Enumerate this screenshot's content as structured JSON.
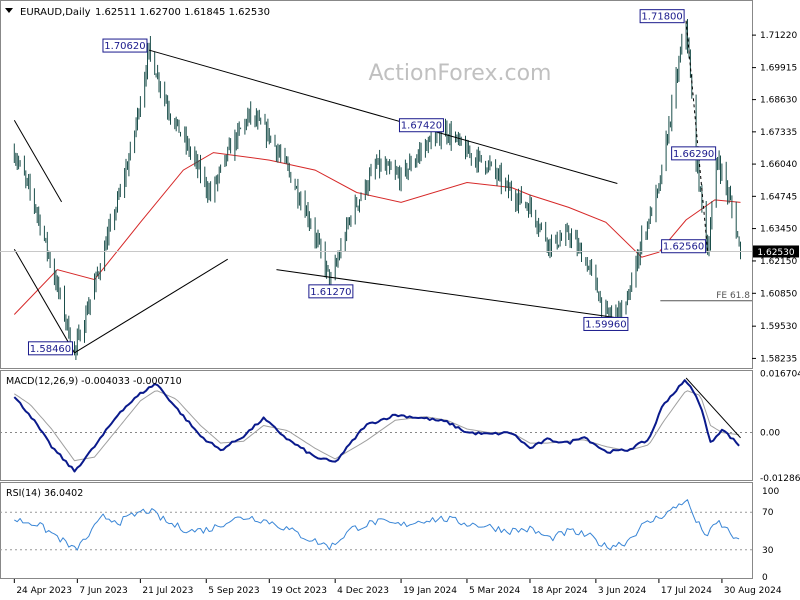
{
  "header": {
    "symbol": "EURAUD,Daily",
    "ohlc": "1.62511 1.62700 1.61845 1.62530"
  },
  "watermark": "ActionForex.com",
  "colors": {
    "price_bars": "#1b4f4b",
    "sma": "#d62828",
    "macd_line": "#0a1a8c",
    "signal_line": "#a0a0a0",
    "rsi_line": "#3a86d6",
    "label_border": "#1a1a8c",
    "label_text": "#1a1a8c",
    "current_bg": "#000000"
  },
  "chart_data": [
    {
      "type": "candlestick",
      "title": "EURAUD,Daily",
      "x_labels": [
        "24 Apr 2023",
        "7 Jun 2023",
        "21 Jul 2023",
        "5 Sep 2023",
        "19 Oct 2023",
        "4 Dec 2023",
        "19 Jan 2024",
        "5 Mar 2024",
        "18 Apr 2024",
        "3 Jun 2024",
        "17 Jul 2024",
        "30 Aug 2024"
      ],
      "y_ticks": [
        "1.71220",
        "1.69915",
        "1.68630",
        "1.67335",
        "1.66040",
        "1.64745",
        "1.63450",
        "1.62150",
        "1.60850",
        "1.59530",
        "1.58235"
      ],
      "ylim": [
        1.5785,
        1.7255
      ],
      "current_price": "1.62530",
      "grid": false,
      "price_path": [
        [
          "24 Apr 2023",
          1.665
        ],
        [
          "9 May 2023",
          1.643
        ],
        [
          "24 May 2023",
          1.611
        ],
        [
          "5 Jun 2023",
          1.5846
        ],
        [
          "19 Jun 2023",
          1.612
        ],
        [
          "5 Jul 2023",
          1.645
        ],
        [
          "15 Jul 2023",
          1.667
        ],
        [
          "27 Jul 2023",
          1.7062
        ],
        [
          "10 Aug 2023",
          1.682
        ],
        [
          "25 Aug 2023",
          1.665
        ],
        [
          "8 Sep 2023",
          1.648
        ],
        [
          "22 Sep 2023",
          1.667
        ],
        [
          "5 Oct 2023",
          1.68
        ],
        [
          "19 Oct 2023",
          1.672
        ],
        [
          "1 Nov 2023",
          1.658
        ],
        [
          "15 Nov 2023",
          1.64
        ],
        [
          "1 Dec 2023",
          1.6127
        ],
        [
          "15 Dec 2023",
          1.64
        ],
        [
          "2 Jan 2024",
          1.66
        ],
        [
          "19 Jan 2024",
          1.655
        ],
        [
          "5 Feb 2024",
          1.668
        ],
        [
          "19 Feb 2024",
          1.6742
        ],
        [
          "5 Mar 2024",
          1.665
        ],
        [
          "20 Mar 2024",
          1.66
        ],
        [
          "3 Apr 2024",
          1.65
        ],
        [
          "18 Apr 2024",
          1.643
        ],
        [
          "2 May 2024",
          1.628
        ],
        [
          "16 May 2024",
          1.632
        ],
        [
          "30 May 2024",
          1.618
        ],
        [
          "10 Jun 2024",
          1.5996
        ],
        [
          "24 Jun 2024",
          1.603
        ],
        [
          "5 Jul 2024",
          1.63
        ],
        [
          "17 Jul 2024",
          1.65
        ],
        [
          "26 Jul 2024",
          1.683
        ],
        [
          "5 Aug 2024",
          1.718
        ],
        [
          "12 Aug 2024",
          1.662
        ],
        [
          "20 Aug 2024",
          1.6256
        ],
        [
          "27 Aug 2024",
          1.6629
        ],
        [
          "5 Sep 2024",
          1.645
        ],
        [
          "12 Sep 2024",
          1.6253
        ]
      ],
      "sma_path": [
        [
          "24 Apr 2023",
          1.6
        ],
        [
          "24 May 2023",
          1.618
        ],
        [
          "19 Jun 2023",
          1.614
        ],
        [
          "21 Jul 2023",
          1.637
        ],
        [
          "20 Aug 2023",
          1.658
        ],
        [
          "10 Sep 2023",
          1.665
        ],
        [
          "19 Oct 2023",
          1.662
        ],
        [
          "20 Nov 2023",
          1.658
        ],
        [
          "19 Dec 2023",
          1.649
        ],
        [
          "19 Jan 2024",
          1.645
        ],
        [
          "5 Mar 2024",
          1.653
        ],
        [
          "5 Apr 2024",
          1.651
        ],
        [
          "18 Apr 2024",
          1.648
        ],
        [
          "15 May 2024",
          1.643
        ],
        [
          "10 Jun 2024",
          1.637
        ],
        [
          "5 Jul 2024",
          1.623
        ],
        [
          "17 Jul 2024",
          1.625
        ],
        [
          "5 Aug 2024",
          1.638
        ],
        [
          "25 Aug 2024",
          1.646
        ],
        [
          "12 Sep 2024",
          1.645
        ]
      ],
      "trendlines": [
        {
          "name": "upper-channel",
          "from": [
            "27 Jul 2023",
            1.7062
          ],
          "to": [
            "18 Jun 2024",
            1.6526
          ]
        },
        {
          "name": "lower-channel",
          "from": [
            "24 Oct 2023",
            1.618
          ],
          "to": [
            "20 Jun 2024",
            1.5985
          ]
        },
        {
          "name": "support-rise",
          "from": [
            "5 Jun 2023",
            1.5846
          ],
          "to": [
            "20 Sep 2023",
            1.6222
          ]
        },
        {
          "name": "down-left",
          "from": [
            "24 Apr 2023",
            1.678
          ],
          "to": [
            "27 May 2023",
            1.6452
          ]
        },
        {
          "name": "down-left-2",
          "from": [
            "24 Apr 2023",
            1.6262
          ],
          "to": [
            "5 Jun 2023",
            1.5846
          ]
        },
        {
          "name": "aug-fall",
          "from": [
            "5 Aug 2024",
            1.718
          ],
          "to": [
            "20 Aug 2024",
            1.6256
          ]
        }
      ],
      "annotations": [
        {
          "text": "1.58460",
          "at": [
            "5 Jun 2023",
            1.5846
          ],
          "pos": "left"
        },
        {
          "text": "1.70620",
          "at": [
            "27 Jul 2023",
            1.7062
          ],
          "pos": "left"
        },
        {
          "text": "1.61270",
          "at": [
            "1 Dec 2023",
            1.6127
          ],
          "pos": "below"
        },
        {
          "text": "1.67420",
          "at": [
            "19 Feb 2024",
            1.6742
          ],
          "pos": "left"
        },
        {
          "text": "1.59960",
          "at": [
            "10 Jun 2024",
            1.5996
          ],
          "pos": "below"
        },
        {
          "text": "1.71800",
          "at": [
            "5 Aug 2024",
            1.718
          ],
          "pos": "left"
        },
        {
          "text": "1.66290",
          "at": [
            "27 Aug 2024",
            1.6629
          ],
          "pos": "left"
        },
        {
          "text": "1.62560",
          "at": [
            "20 Aug 2024",
            1.6256
          ],
          "pos": "left"
        }
      ],
      "fe_line": {
        "label": "FE 61.8",
        "value": 1.6055,
        "from": "18 Jul 2024"
      }
    },
    {
      "type": "line",
      "title": "MACD(12,26,9) -0.004033 -0.000710",
      "y_ticks": [
        "0.016704",
        "0.00",
        "-0.012869"
      ],
      "ylim": [
        -0.0135,
        0.0172
      ],
      "zero_line": true,
      "series": [
        {
          "name": "MACD",
          "points": [
            [
              "24 Apr 2023",
              0.01
            ],
            [
              "5 May 2023",
              0.005
            ],
            [
              "20 May 2023",
              -0.004
            ],
            [
              "5 Jun 2023",
              -0.011
            ],
            [
              "19 Jun 2023",
              -0.004
            ],
            [
              "7 Jul 2023",
              0.006
            ],
            [
              "21 Jul 2023",
              0.011
            ],
            [
              "1 Aug 2023",
              0.014
            ],
            [
              "15 Aug 2023",
              0.007
            ],
            [
              "1 Sep 2023",
              -0.001
            ],
            [
              "15 Sep 2023",
              -0.005
            ],
            [
              "1 Oct 2023",
              -0.001
            ],
            [
              "15 Oct 2023",
              0.004
            ],
            [
              "1 Nov 2023",
              -0.002
            ],
            [
              "20 Nov 2023",
              -0.007
            ],
            [
              "4 Dec 2023",
              -0.0085
            ],
            [
              "25 Dec 2023",
              0.002
            ],
            [
              "15 Jan 2024",
              0.005
            ],
            [
              "5 Feb 2024",
              0.004
            ],
            [
              "20 Feb 2024",
              0.003
            ],
            [
              "5 Mar 2024",
              0.0
            ],
            [
              "20 Mar 2024",
              -0.0005
            ],
            [
              "5 Apr 2024",
              0.0
            ],
            [
              "18 Apr 2024",
              -0.0045
            ],
            [
              "30 Apr 2024",
              -0.002
            ],
            [
              "15 May 2024",
              -0.003
            ],
            [
              "25 May 2024",
              -0.001
            ],
            [
              "10 Jun 2024",
              -0.0055
            ],
            [
              "25 Jun 2024",
              -0.005
            ],
            [
              "10 Jul 2024",
              -0.002
            ],
            [
              "20 Jul 2024",
              0.008
            ],
            [
              "5 Aug 2024",
              0.015
            ],
            [
              "15 Aug 2024",
              0.008
            ],
            [
              "22 Aug 2024",
              -0.003
            ],
            [
              "30 Aug 2024",
              0.001
            ],
            [
              "12 Sep 2024",
              -0.004
            ]
          ]
        },
        {
          "name": "Signal",
          "points": [
            [
              "24 Apr 2023",
              0.011
            ],
            [
              "5 May 2023",
              0.008
            ],
            [
              "20 May 2023",
              0.001
            ],
            [
              "5 Jun 2023",
              -0.008
            ],
            [
              "19 Jun 2023",
              -0.007
            ],
            [
              "7 Jul 2023",
              0.002
            ],
            [
              "21 Jul 2023",
              0.009
            ],
            [
              "1 Aug 2023",
              0.012
            ],
            [
              "15 Aug 2023",
              0.0095
            ],
            [
              "1 Sep 2023",
              0.002
            ],
            [
              "15 Sep 2023",
              -0.003
            ],
            [
              "1 Oct 2023",
              -0.0025
            ],
            [
              "15 Oct 2023",
              0.002
            ],
            [
              "1 Nov 2023",
              0.0005
            ],
            [
              "20 Nov 2023",
              -0.0045
            ],
            [
              "4 Dec 2023",
              -0.0075
            ],
            [
              "25 Dec 2023",
              -0.0025
            ],
            [
              "15 Jan 2024",
              0.0035
            ],
            [
              "5 Feb 2024",
              0.0045
            ],
            [
              "20 Feb 2024",
              0.0035
            ],
            [
              "5 Mar 2024",
              0.001
            ],
            [
              "20 Mar 2024",
              0.0
            ],
            [
              "5 Apr 2024",
              0.0
            ],
            [
              "18 Apr 2024",
              -0.003
            ],
            [
              "30 Apr 2024",
              -0.003
            ],
            [
              "15 May 2024",
              -0.0025
            ],
            [
              "25 May 2024",
              -0.002
            ],
            [
              "10 Jun 2024",
              -0.004
            ],
            [
              "25 Jun 2024",
              -0.0052
            ],
            [
              "10 Jul 2024",
              -0.0035
            ],
            [
              "20 Jul 2024",
              0.003
            ],
            [
              "5 Aug 2024",
              0.012
            ],
            [
              "15 Aug 2024",
              0.0105
            ],
            [
              "22 Aug 2024",
              0.002
            ],
            [
              "30 Aug 2024",
              0.0
            ],
            [
              "12 Sep 2024",
              -0.0007
            ]
          ]
        }
      ],
      "trendline": {
        "from": [
          "5 Aug 2024",
          0.0155
        ],
        "to": [
          "12 Sep 2024",
          -0.0015
        ]
      }
    },
    {
      "type": "line",
      "title": "RSI(14) 36.0402",
      "y_ticks": [
        "100",
        "70",
        "30",
        "0"
      ],
      "ylim": [
        0,
        100
      ],
      "levels": [
        70,
        30
      ],
      "series": [
        {
          "name": "RSI",
          "points": [
            [
              "24 Apr 2023",
              62
            ],
            [
              "9 May 2023",
              58
            ],
            [
              "24 May 2023",
              44
            ],
            [
              "5 Jun 2023",
              30
            ],
            [
              "12 Jun 2023",
              40
            ],
            [
              "25 Jun 2023",
              65
            ],
            [
              "7 Jul 2023",
              60
            ],
            [
              "21 Jul 2023",
              70
            ],
            [
              "27 Jul 2023",
              72
            ],
            [
              "10 Aug 2023",
              58
            ],
            [
              "25 Aug 2023",
              50
            ],
            [
              "8 Sep 2023",
              52
            ],
            [
              "22 Sep 2023",
              62
            ],
            [
              "5 Oct 2023",
              65
            ],
            [
              "19 Oct 2023",
              60
            ],
            [
              "1 Nov 2023",
              52
            ],
            [
              "15 Nov 2023",
              42
            ],
            [
              "1 Dec 2023",
              33
            ],
            [
              "15 Dec 2023",
              52
            ],
            [
              "2 Jan 2024",
              60
            ],
            [
              "19 Jan 2024",
              56
            ],
            [
              "5 Feb 2024",
              62
            ],
            [
              "19 Feb 2024",
              63
            ],
            [
              "5 Mar 2024",
              58
            ],
            [
              "20 Mar 2024",
              55
            ],
            [
              "3 Apr 2024",
              50
            ],
            [
              "18 Apr 2024",
              52
            ],
            [
              "2 May 2024",
              42
            ],
            [
              "16 May 2024",
              50
            ],
            [
              "30 May 2024",
              44
            ],
            [
              "10 Jun 2024",
              33
            ],
            [
              "24 Jun 2024",
              38
            ],
            [
              "5 Jul 2024",
              55
            ],
            [
              "17 Jul 2024",
              65
            ],
            [
              "26 Jul 2024",
              72
            ],
            [
              "5 Aug 2024",
              84
            ],
            [
              "12 Aug 2024",
              60
            ],
            [
              "20 Aug 2024",
              45
            ],
            [
              "27 Aug 2024",
              60
            ],
            [
              "5 Sep 2024",
              48
            ],
            [
              "12 Sep 2024",
              36
            ]
          ]
        }
      ]
    }
  ]
}
